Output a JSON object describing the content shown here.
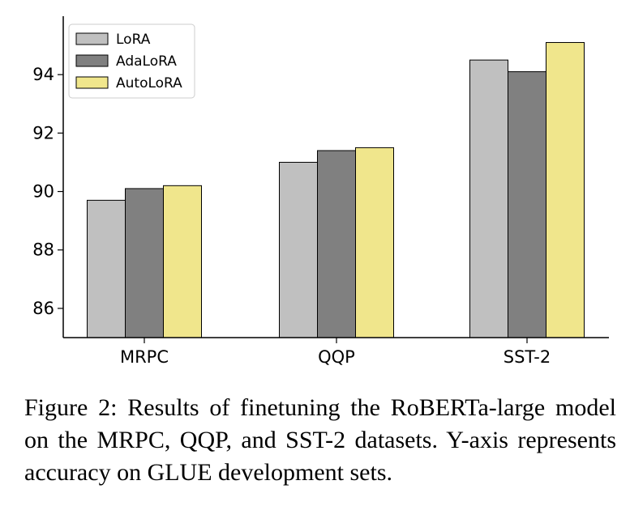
{
  "chart_data": {
    "type": "bar",
    "categories": [
      "MRPC",
      "QQP",
      "SST-2"
    ],
    "series": [
      {
        "name": "LoRA",
        "values": [
          89.7,
          91.0,
          94.5
        ],
        "color": "#c0c0c0"
      },
      {
        "name": "AdaLoRA",
        "values": [
          90.1,
          91.4,
          94.1
        ],
        "color": "#808080"
      },
      {
        "name": "AutoLoRA",
        "values": [
          90.2,
          91.5,
          95.1
        ],
        "color": "#f0e68c"
      }
    ],
    "yticks": [
      86,
      88,
      90,
      92,
      94
    ],
    "ylim": [
      85,
      96
    ],
    "title": "",
    "xlabel": "",
    "ylabel": "",
    "legend_position": "top-left"
  },
  "caption": "Figure 2: Results of finetuning the RoBERTa-large model on the MRPC, QQP, and SST-2 datasets. Y-axis represents accuracy on GLUE development sets."
}
